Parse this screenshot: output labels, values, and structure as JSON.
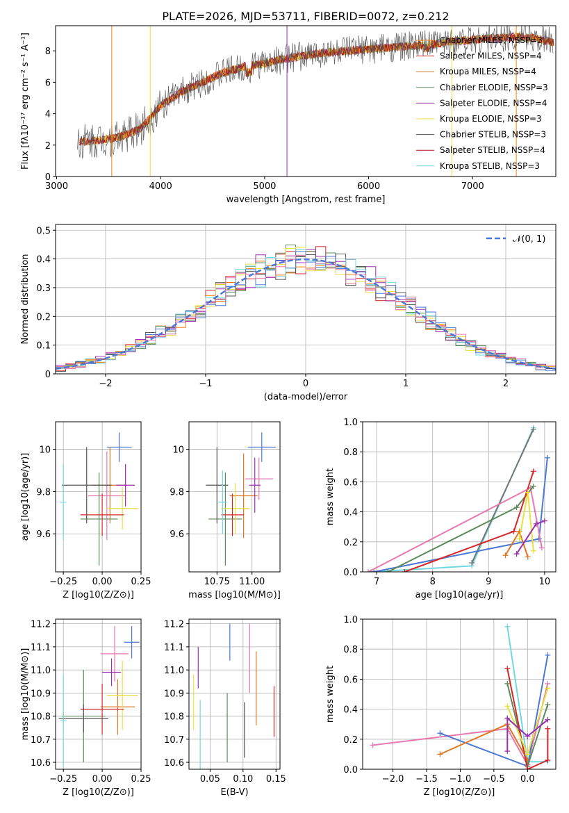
{
  "title": "PLATE=2026, MJD=53711, FIBERID=0072, z=0.212",
  "colors": {
    "model1": "#ff7f0e",
    "model2": "#d62728",
    "model3": "#cc7722",
    "model4": "#5a8a5a",
    "model5": "#9b30b0",
    "model6": "#e8e040",
    "model7": "#555555",
    "model8": "#b01010",
    "model9": "#70d8e0",
    "blue": "#4a78d4",
    "pink": "#e878b0",
    "grey": "#777777",
    "orange": "#e07820",
    "green": "#5a8a5a"
  },
  "chart_data": [
    {
      "id": "spectrum",
      "type": "line",
      "xlabel": "wavelength [Angstrom, rest frame]",
      "ylabel": "Flux [fλ10⁻¹⁷ erg cm⁻² s⁻¹ A⁻¹]",
      "xlim": [
        2990,
        7800
      ],
      "ylim": [
        0,
        9.6
      ],
      "xticks": [
        3000,
        4000,
        5000,
        6000,
        7000
      ],
      "yticks": [
        0,
        2,
        4,
        6,
        8
      ],
      "legend": [
        "Chabrier MILES, NSSP=3",
        "Salpeter MILES, NSSP=4",
        "Kroupa MILES, NSSP=4",
        "Chabrier ELODIE, NSSP=3",
        "Salpeter ELODIE, NSSP=4",
        "Kroupa ELODIE, NSSP=3",
        "Chabrier STELIB, NSSP=3",
        "Salpeter STELIB, NSSP=4",
        "Kroupa STELIB, NSSP=3"
      ],
      "data_trend": {
        "x": [
          3200,
          3400,
          3600,
          3800,
          4000,
          4200,
          4400,
          4600,
          4800,
          5000,
          5200,
          5400,
          5600,
          5800,
          6000,
          6200,
          6400,
          6600,
          6800,
          7000,
          7200,
          7400,
          7600,
          7800
        ],
        "y": [
          2.2,
          2.3,
          2.5,
          3.0,
          4.5,
          5.4,
          6.0,
          6.6,
          7.0,
          7.2,
          7.5,
          7.7,
          7.9,
          8.0,
          8.1,
          8.2,
          8.3,
          8.4,
          8.6,
          8.7,
          8.8,
          8.9,
          8.8,
          8.5
        ]
      }
    },
    {
      "id": "residuals",
      "type": "histogram",
      "xlabel": "(data-model)/error",
      "ylabel": "Normed distribution",
      "xlim": [
        -2.5,
        2.5
      ],
      "ylim": [
        0,
        0.52
      ],
      "xticks": [
        -2,
        -1,
        0,
        1,
        2
      ],
      "yticks": [
        0.0,
        0.1,
        0.2,
        0.3,
        0.4,
        0.5
      ],
      "legend": [
        "𝒩(0, 1)"
      ]
    },
    {
      "id": "age-vs-Z",
      "type": "scatter",
      "xlabel": "Z [log10(Z/Z⊙)]",
      "ylabel": "age  [log10(age/yr)]",
      "xlim": [
        -0.3,
        0.25
      ],
      "ylim": [
        9.42,
        10.13
      ],
      "xticks": [
        -0.25,
        0.0,
        0.25
      ],
      "yticks": [
        9.6,
        9.8,
        10.0
      ],
      "points": [
        {
          "x": 0.11,
          "y": 10.01,
          "dx": 0.08,
          "dy": 0.07
        },
        {
          "x": 0.05,
          "y": 9.83,
          "dx": 0.11,
          "dy": 0.18
        },
        {
          "x": 0.03,
          "y": 9.78,
          "dx": 0.12,
          "dy": 0.21
        },
        {
          "x": -0.02,
          "y": 9.67,
          "dx": 0.12,
          "dy": 0.22
        },
        {
          "x": 0.15,
          "y": 9.83,
          "dx": 0.06,
          "dy": 0.1
        },
        {
          "x": 0.13,
          "y": 9.72,
          "dx": 0.1,
          "dy": 0.1
        },
        {
          "x": 0.0,
          "y": 9.69,
          "dx": 0.14,
          "dy": 0.1
        },
        {
          "x": -0.1,
          "y": 9.83,
          "dx": 0.16,
          "dy": 0.18
        },
        {
          "x": -0.25,
          "y": 9.75,
          "dx": 0.02,
          "dy": 0.18
        }
      ]
    },
    {
      "id": "age-vs-mass",
      "type": "scatter",
      "xlabel": "mass [log10(M/M⊙)]",
      "xlim": [
        10.55,
        11.2
      ],
      "ylim": [
        9.42,
        10.13
      ],
      "xticks": [
        10.75,
        11.0
      ],
      "yticks": [
        9.6,
        9.8,
        10.0
      ]
    },
    {
      "id": "weight-vs-age",
      "type": "line",
      "xlabel": "age  [log10(age/yr)]",
      "ylabel": "mass weight",
      "xlim": [
        6.75,
        10.2
      ],
      "ylim": [
        0,
        1.0
      ],
      "xticks": [
        7,
        8,
        9,
        10
      ],
      "yticks": [
        0.0,
        0.2,
        0.4,
        0.6,
        0.8,
        1.0
      ]
    },
    {
      "id": "mass-vs-Z",
      "type": "scatter",
      "xlabel": "Z [log10(Z/Z⊙)]",
      "ylabel": "mass [log10(M/M⊙)]",
      "xlim": [
        -0.3,
        0.25
      ],
      "ylim": [
        10.57,
        11.22
      ],
      "xticks": [
        -0.25,
        0.0,
        0.25
      ],
      "yticks": [
        10.6,
        10.7,
        10.8,
        10.9,
        11.0,
        11.1,
        11.2
      ]
    },
    {
      "id": "mass-vs-ebv",
      "type": "scatter",
      "xlabel": "E(B-V)",
      "xlim": [
        0.018,
        0.156
      ],
      "ylim": [
        10.57,
        11.22
      ],
      "xticks": [
        0.05,
        0.1,
        0.15
      ],
      "yticks": [
        10.6,
        10.7,
        10.8,
        10.9,
        11.0,
        11.1,
        11.2
      ]
    },
    {
      "id": "weight-vs-Z",
      "type": "line",
      "xlabel": "Z [log10(Z/Z⊙)]",
      "ylabel": "mass weight",
      "xlim": [
        -2.45,
        0.42
      ],
      "ylim": [
        0,
        1.0
      ],
      "xticks": [
        -2.0,
        -1.5,
        -1.0,
        -0.5,
        0.0
      ],
      "yticks": [
        0.0,
        0.2,
        0.4,
        0.6,
        0.8,
        1.0
      ]
    }
  ]
}
